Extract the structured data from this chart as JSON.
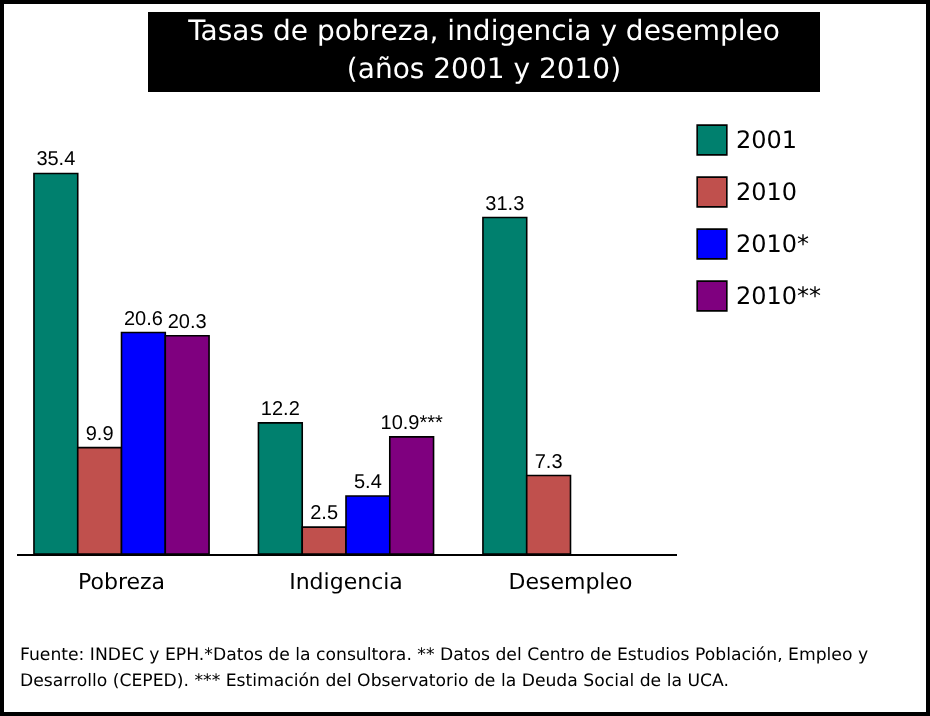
{
  "chart_data": {
    "type": "bar",
    "title": "Tasas de pobreza, indigencia y desempleo (años 2001 y 2010)",
    "categories": [
      "Pobreza",
      "Indigencia",
      "Desempleo"
    ],
    "series": [
      {
        "name": "2001",
        "color": "#00806e",
        "values": [
          35.4,
          12.2,
          31.3
        ]
      },
      {
        "name": "2010",
        "color": "#c0504d",
        "values": [
          9.9,
          2.5,
          7.3
        ]
      },
      {
        "name": "2010*",
        "color": "#0000ff",
        "values": [
          20.6,
          5.4,
          null
        ]
      },
      {
        "name": "2010**",
        "color": "#7f007f",
        "values": [
          20.3,
          10.9,
          null
        ],
        "value_labels": [
          "20.3",
          "10.9***",
          null
        ]
      }
    ],
    "data_labels": true,
    "legend": "right",
    "grid": false,
    "annotations": [
      "Fuente: INDEC y EPH.*Datos de la consultora. ** Datos del Centro de Estudios Población, Empleo y Desarrollo (CEPED). *** Estimación del Observatorio de la Deuda Social de la UCA."
    ]
  }
}
